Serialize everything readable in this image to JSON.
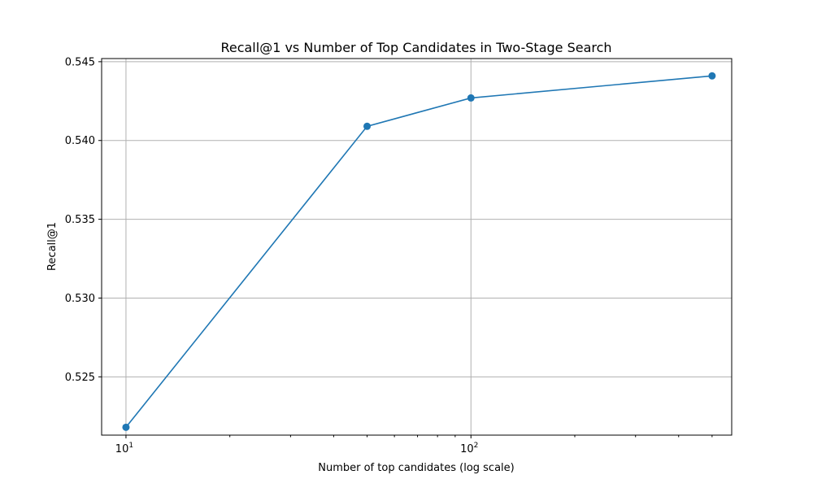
{
  "chart_data": {
    "type": "line",
    "title": "Recall@1 vs Number of Top Candidates in Two-Stage Search",
    "xlabel": "Number of top candidates (log scale)",
    "ylabel": "Recall@1",
    "x_scale": "log",
    "xlim": [
      8.5,
      570
    ],
    "ylim": [
      0.5213,
      0.5452
    ],
    "x_ticks": [
      {
        "value": 10,
        "base": "10",
        "exp": "1"
      },
      {
        "value": 100,
        "base": "10",
        "exp": "2"
      }
    ],
    "x_minor_ticks": [
      20,
      30,
      40,
      50,
      60,
      70,
      80,
      90,
      200,
      300,
      400,
      500
    ],
    "y_ticks": [
      {
        "value": 0.525,
        "label": "0.525"
      },
      {
        "value": 0.53,
        "label": "0.530"
      },
      {
        "value": 0.535,
        "label": "0.535"
      },
      {
        "value": 0.54,
        "label": "0.540"
      },
      {
        "value": 0.545,
        "label": "0.545"
      }
    ],
    "grid": true,
    "series": [
      {
        "color": "#1f77b4",
        "marker": "circle",
        "points": [
          {
            "x": 10,
            "y": 0.5218
          },
          {
            "x": 50,
            "y": 0.5409
          },
          {
            "x": 100,
            "y": 0.5427
          },
          {
            "x": 500,
            "y": 0.5441
          }
        ]
      }
    ]
  }
}
